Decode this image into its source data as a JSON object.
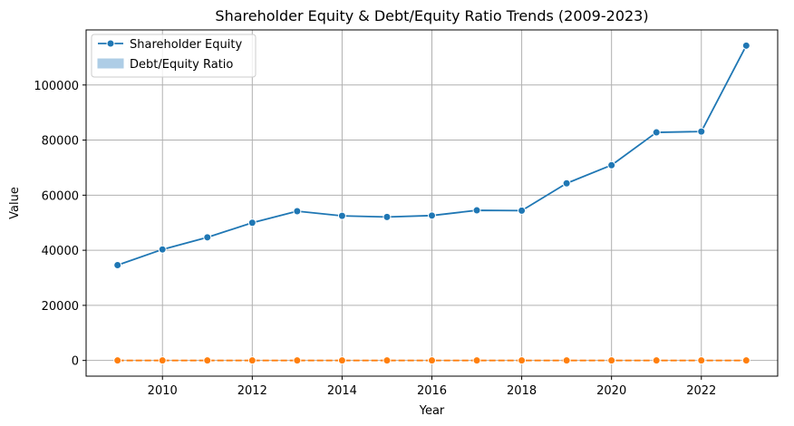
{
  "chart_data": {
    "type": "line",
    "title": "Shareholder Equity & Debt/Equity Ratio Trends (2009-2023)",
    "xlabel": "Year",
    "ylabel": "Value",
    "x": [
      2009,
      2010,
      2011,
      2012,
      2013,
      2014,
      2015,
      2016,
      2017,
      2018,
      2019,
      2020,
      2021,
      2022,
      2023
    ],
    "xlim": [
      2008.3,
      2023.7
    ],
    "ylim": [
      -5700,
      120000
    ],
    "x_ticks": [
      2010,
      2012,
      2014,
      2016,
      2018,
      2020,
      2022
    ],
    "y_ticks": [
      0,
      20000,
      40000,
      60000,
      80000,
      100000
    ],
    "grid": true,
    "legend_position": "top-left",
    "series": [
      {
        "name": "Shareholder Equity",
        "color": "#1f77b4",
        "style": "solid",
        "marker": "circle",
        "values": [
          34600,
          40300,
          44700,
          50000,
          54200,
          52500,
          52100,
          52600,
          54500,
          54400,
          64300,
          70900,
          82800,
          83100,
          114300
        ]
      },
      {
        "name": "Debt/Equity Ratio",
        "color": "#ff7f0e",
        "style": "dashed",
        "marker": "circle",
        "legend_swatch": "band",
        "legend_swatch_color": "#aecde6",
        "values": [
          0.5,
          0.5,
          0.5,
          0.5,
          0.5,
          0.5,
          0.5,
          0.5,
          0.5,
          0.5,
          0.5,
          0.5,
          0.5,
          0.5,
          0.5
        ]
      }
    ]
  }
}
